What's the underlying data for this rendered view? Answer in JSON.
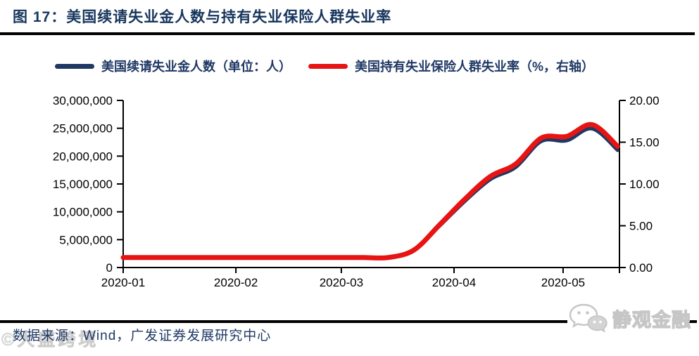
{
  "header": {
    "title": "图 17：美国续请失业金人数与持有失业保险人群失业率"
  },
  "legend": [
    {
      "label": "美国续请失业金人数（单位：人）",
      "color": "#1f3864"
    },
    {
      "label": "美国持有失业保险人群失业率（%，右轴）",
      "color": "#e81414"
    }
  ],
  "footer": {
    "source": "数据来源：Wind，广发证券发展研究中心",
    "watermark": "©大盛跨境",
    "badge_text": "静观金融"
  },
  "colors": {
    "title_navy": "#17365d",
    "series_navy": "#1f3864",
    "series_red": "#e81414",
    "axis_black": "#000000"
  },
  "chart_data": {
    "type": "line",
    "title": "美国续请失业金人数与持有失业保险人群失业率",
    "grid": false,
    "legend_position": "top",
    "x_axis": {
      "tick_labels": [
        "2020-01",
        "2020-02",
        "2020-03",
        "2020-04",
        "2020-05"
      ],
      "month_tick_days": [
        0,
        31,
        60,
        91,
        121
      ],
      "domain_days": [
        0,
        136.5
      ]
    },
    "left_axis": {
      "min": 0,
      "max": 30000000,
      "step": 5000000,
      "tick_labels": [
        "0",
        "5,000,000",
        "10,000,000",
        "15,000,000",
        "20,000,000",
        "25,000,000",
        "30,000,000"
      ]
    },
    "right_axis": {
      "min": 0,
      "max": 20,
      "step": 5,
      "tick_labels": [
        "0.00",
        "5.00",
        "10.00",
        "15.00",
        "20.00"
      ]
    },
    "series": [
      {
        "id": "claims",
        "name": "美国续请失业金人数（单位：人）",
        "axis": "left",
        "color": "#1f3864",
        "x_days": [
          0,
          3,
          10,
          17,
          24,
          31,
          38,
          45,
          52,
          59,
          66,
          73,
          80,
          87,
          94,
          101,
          108,
          115,
          122,
          129,
          136
        ],
        "values": [
          1770000,
          1770000,
          1760000,
          1740000,
          1720000,
          1720000,
          1700000,
          1720000,
          1720000,
          1720000,
          1700000,
          1800000,
          3060000,
          7440000,
          11910000,
          15820000,
          18010000,
          22650000,
          22790000,
          24910000,
          21050000
        ]
      },
      {
        "id": "rate",
        "name": "美国持有失业保险人群失业率（%，右轴）",
        "axis": "right",
        "color": "#e81414",
        "x_days": [
          0,
          3,
          10,
          17,
          24,
          31,
          38,
          45,
          52,
          59,
          66,
          73,
          80,
          87,
          94,
          101,
          108,
          115,
          122,
          129,
          136
        ],
        "values": [
          1.2,
          1.2,
          1.2,
          1.2,
          1.2,
          1.2,
          1.2,
          1.2,
          1.2,
          1.2,
          1.2,
          1.2,
          2.1,
          5.1,
          8.2,
          10.9,
          12.4,
          15.5,
          15.7,
          17.1,
          14.5
        ]
      }
    ]
  }
}
